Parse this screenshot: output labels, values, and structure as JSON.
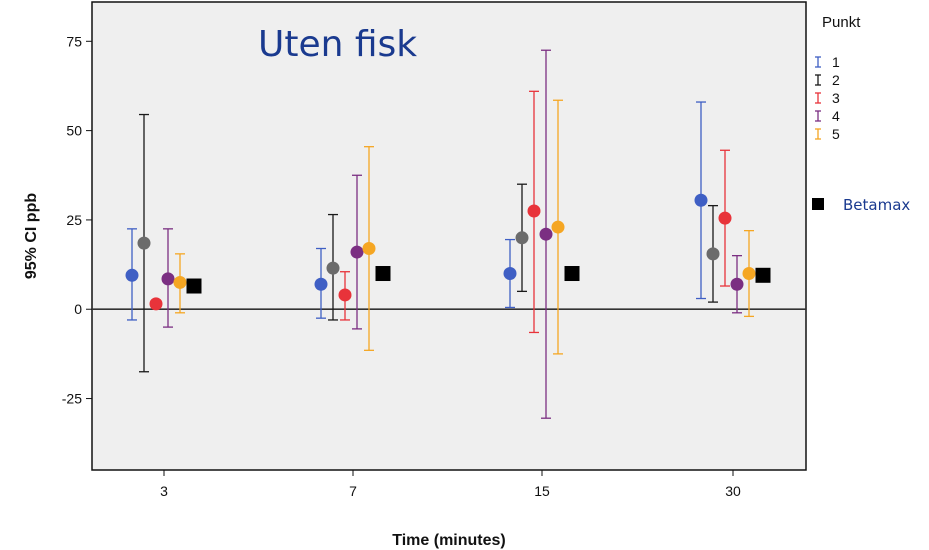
{
  "chart_data": {
    "type": "scatter",
    "title": "Uten fisk",
    "xlabel": "Time (minutes)",
    "ylabel": "95% CI ppb",
    "categories": [
      "3",
      "7",
      "15",
      "30"
    ],
    "yticks": [
      "75",
      "50",
      "25",
      "0",
      "-25"
    ],
    "ylim": [
      -45,
      86
    ],
    "reference_line_y": 0,
    "legend_title": "Punkt",
    "legend_position": "right",
    "series": [
      {
        "name": "1",
        "color": "#3f5fc4",
        "values": [
          9.5,
          7,
          10,
          30.5
        ],
        "ci_low": [
          -3,
          -2.5,
          0.5,
          3
        ],
        "ci_high": [
          22.5,
          17,
          19.5,
          58
        ]
      },
      {
        "name": "2",
        "color": "#1a1a1a",
        "point_color": "#6b6b6b",
        "values": [
          18.5,
          11.5,
          20,
          15.5
        ],
        "ci_low": [
          -17.5,
          -3,
          5,
          2
        ],
        "ci_high": [
          54.5,
          26.5,
          35,
          29
        ]
      },
      {
        "name": "3",
        "color": "#e8333a",
        "values": [
          1.5,
          4,
          27.5,
          25.5
        ],
        "ci_low": [
          null,
          -3,
          -6.5,
          6.5
        ],
        "ci_high": [
          null,
          10.5,
          61,
          44.5
        ],
        "no_ci_at": [
          "3"
        ]
      },
      {
        "name": "4",
        "color": "#7b2f82",
        "values": [
          8.5,
          16,
          21,
          7
        ],
        "ci_low": [
          -5,
          -5.5,
          -30.5,
          -1
        ],
        "ci_high": [
          22.5,
          37.5,
          72.5,
          15
        ]
      },
      {
        "name": "5",
        "color": "#f5a623",
        "values": [
          7.5,
          17,
          23,
          10
        ],
        "ci_low": [
          -1,
          -11.5,
          -12.5,
          -2
        ],
        "ci_high": [
          15.5,
          45.5,
          58.5,
          22
        ]
      }
    ],
    "extra_series": {
      "name": "Betamax",
      "color": "#000000",
      "marker": "square",
      "values": [
        6.5,
        10,
        10,
        9.5
      ]
    }
  },
  "colors": {
    "plot_background": "#efefef",
    "axis": "#111111",
    "title": "#1a3a8f"
  }
}
